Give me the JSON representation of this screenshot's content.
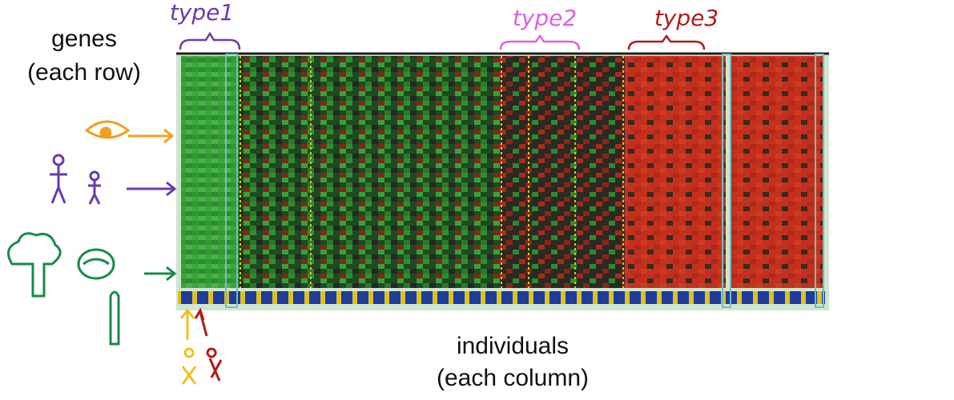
{
  "rows_label": {
    "line1": "genes",
    "line2": "(each row)"
  },
  "columns_label": {
    "line1": "individuals",
    "line2": "(each column)"
  },
  "types": [
    "type1",
    "type2",
    "type3"
  ]
}
